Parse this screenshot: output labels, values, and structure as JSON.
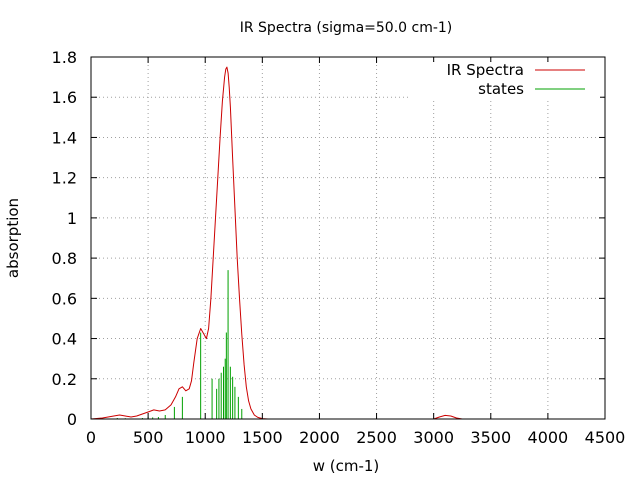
{
  "chart_data": {
    "type": "line",
    "title": "IR Spectra (sigma=50.0 cm-1)",
    "xlabel": "w (cm-1)",
    "ylabel": "absorption",
    "xlim": [
      0,
      4500
    ],
    "ylim": [
      0,
      1.8
    ],
    "x_ticks": [
      "0",
      "500",
      "1000",
      "1500",
      "2000",
      "2500",
      "3000",
      "3500",
      "4000",
      "4500"
    ],
    "y_ticks": [
      "0",
      "0.2",
      "0.4",
      "0.6",
      "0.8",
      "1",
      "1.2",
      "1.4",
      "1.6",
      "1.8"
    ],
    "grid": true,
    "legend_position": "top-right",
    "series": [
      {
        "name": "IR Spectra",
        "color": "#cc0000",
        "style": "line",
        "x": [
          0,
          100,
          200,
          250,
          300,
          350,
          400,
          450,
          500,
          550,
          600,
          650,
          700,
          740,
          770,
          800,
          830,
          860,
          880,
          900,
          930,
          960,
          990,
          1010,
          1030,
          1050,
          1070,
          1090,
          1110,
          1130,
          1150,
          1170,
          1180,
          1190,
          1200,
          1210,
          1220,
          1240,
          1260,
          1280,
          1300,
          1320,
          1340,
          1360,
          1380,
          1400,
          1430,
          1460,
          1500,
          1550,
          1600,
          3000,
          3050,
          3100,
          3150,
          3200,
          3250,
          4500
        ],
        "y": [
          0.0,
          0.005,
          0.015,
          0.02,
          0.015,
          0.01,
          0.015,
          0.025,
          0.035,
          0.045,
          0.04,
          0.045,
          0.07,
          0.11,
          0.15,
          0.16,
          0.14,
          0.15,
          0.19,
          0.28,
          0.4,
          0.45,
          0.42,
          0.4,
          0.45,
          0.6,
          0.8,
          1.0,
          1.2,
          1.4,
          1.58,
          1.7,
          1.74,
          1.75,
          1.72,
          1.65,
          1.55,
          1.3,
          1.05,
          0.8,
          0.6,
          0.42,
          0.27,
          0.16,
          0.09,
          0.05,
          0.02,
          0.008,
          0.002,
          0.0,
          0.0,
          0.0,
          0.01,
          0.018,
          0.015,
          0.005,
          0.0,
          0.0
        ]
      },
      {
        "name": "states",
        "color": "#00a000",
        "style": "impulses",
        "x": [
          230,
          300,
          450,
          500,
          540,
          590,
          650,
          730,
          800,
          960,
          1060,
          1100,
          1120,
          1140,
          1160,
          1175,
          1185,
          1200,
          1220,
          1240,
          1260,
          1290,
          1320
        ],
        "y": [
          0.005,
          0.004,
          0.005,
          0.01,
          0.008,
          0.01,
          0.02,
          0.06,
          0.11,
          0.43,
          0.2,
          0.15,
          0.2,
          0.23,
          0.26,
          0.3,
          0.43,
          0.74,
          0.26,
          0.21,
          0.16,
          0.11,
          0.05
        ]
      }
    ]
  }
}
